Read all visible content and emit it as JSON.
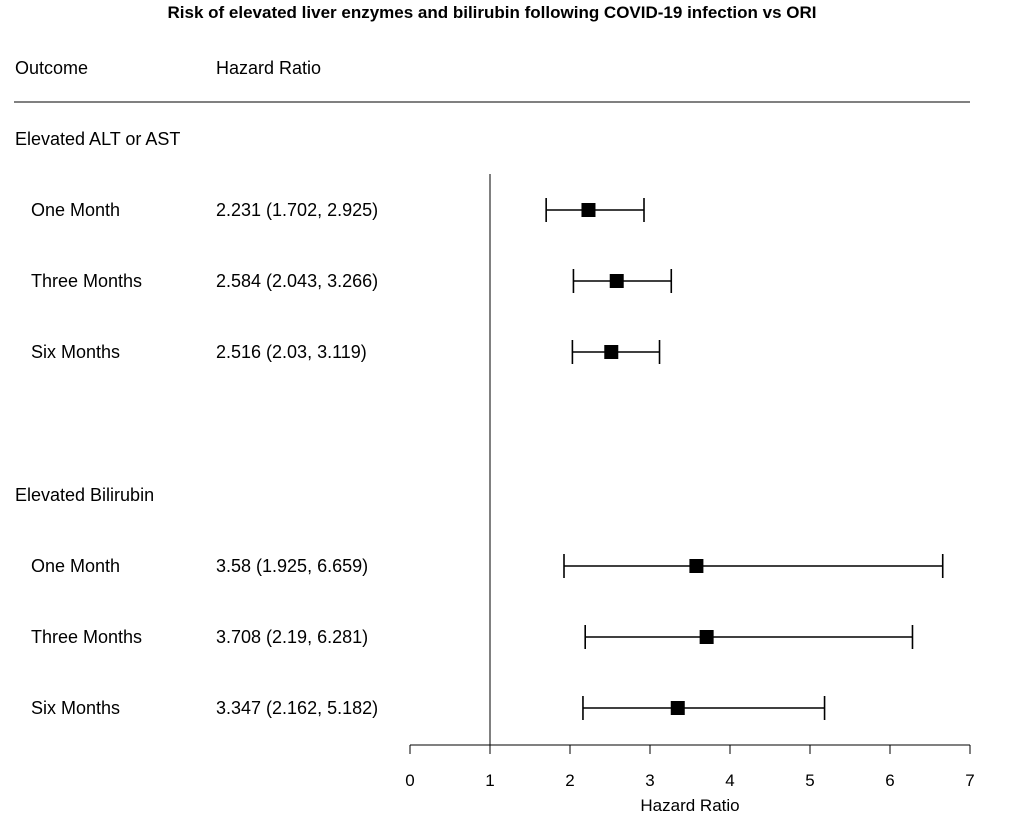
{
  "chart_data": {
    "type": "forest",
    "title": "Risk of elevated liver enzymes and bilirubin following COVID-19 infection vs ORI",
    "columns": {
      "outcome": "Outcome",
      "estimate": "Hazard Ratio"
    },
    "xlabel": "Hazard Ratio",
    "xlim": [
      0,
      7
    ],
    "xticks": [
      "0",
      "1",
      "2",
      "3",
      "4",
      "5",
      "6",
      "7"
    ],
    "reference_line": 1,
    "groups": [
      {
        "name": "Elevated ALT or AST",
        "rows": [
          {
            "label": "One Month",
            "text": "2.231 (1.702, 2.925)",
            "hr": 2.231,
            "lower": 1.702,
            "upper": 2.925
          },
          {
            "label": "Three Months",
            "text": "2.584 (2.043, 3.266)",
            "hr": 2.584,
            "lower": 2.043,
            "upper": 3.266
          },
          {
            "label": "Six Months",
            "text": "2.516 (2.03, 3.119)",
            "hr": 2.516,
            "lower": 2.03,
            "upper": 3.119
          }
        ]
      },
      {
        "name": "Elevated Bilirubin",
        "rows": [
          {
            "label": "One Month",
            "text": "3.58 (1.925, 6.659)",
            "hr": 3.58,
            "lower": 1.925,
            "upper": 6.659
          },
          {
            "label": "Three Months",
            "text": "3.708 (2.19, 6.281)",
            "hr": 3.708,
            "lower": 2.19,
            "upper": 6.281
          },
          {
            "label": "Six Months",
            "text": "3.347 (2.162, 5.182)",
            "hr": 3.347,
            "lower": 2.162,
            "upper": 5.182
          }
        ]
      }
    ]
  }
}
